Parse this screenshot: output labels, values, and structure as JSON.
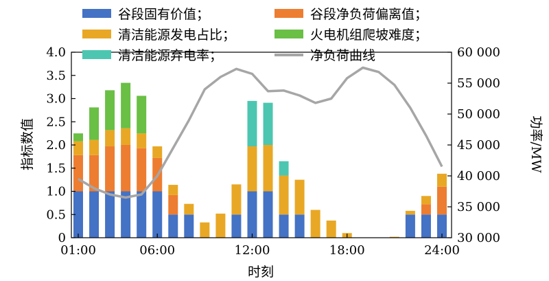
{
  "chart_data": {
    "type": "bar",
    "stacked": true,
    "xlabel": "时刻",
    "ylabel": "指标数值",
    "y2label": "功率/MW",
    "ylim": [
      0,
      4.0
    ],
    "y2lim": [
      30000,
      60000
    ],
    "yticks": [
      "0",
      "0.5",
      "1.0",
      "1.5",
      "2.0",
      "2.5",
      "3.0",
      "3.5",
      "4.0"
    ],
    "y2ticks": [
      "30 000",
      "35 000",
      "40 000",
      "45 000",
      "50 000",
      "55 000",
      "60 000"
    ],
    "xticks": [
      "01:00",
      "06:00",
      "12:00",
      "18:00",
      "24:00"
    ],
    "hours": [
      1,
      2,
      3,
      4,
      5,
      6,
      7,
      8,
      9,
      10,
      11,
      12,
      13,
      14,
      15,
      16,
      17,
      18,
      19,
      20,
      21,
      22,
      23,
      24
    ],
    "series": [
      {
        "name": "谷段固有价值；",
        "color": "#4472c4",
        "values": [
          1.0,
          1.0,
          1.0,
          1.0,
          1.0,
          1.0,
          0.5,
          0.5,
          0,
          0,
          0.5,
          1.0,
          1.0,
          0.5,
          0.5,
          0,
          0,
          0,
          0,
          0,
          0,
          0.5,
          0.5,
          0.5
        ]
      },
      {
        "name": "谷段净负荷偏离值；",
        "color": "#ed7d31",
        "values": [
          0.78,
          0.78,
          0.97,
          1.0,
          0.93,
          0.72,
          0.42,
          0,
          0,
          0,
          0,
          0,
          0,
          0,
          0,
          0,
          0,
          0,
          0,
          0,
          0,
          0,
          0.22,
          0.6
        ]
      },
      {
        "name": "清洁能源发电占比；",
        "color": "#e8a825",
        "values": [
          0.3,
          0.33,
          0.35,
          0.36,
          0.32,
          0.25,
          0.22,
          0.23,
          0.33,
          0.52,
          0.65,
          0.97,
          1.0,
          0.84,
          0.75,
          0.6,
          0.37,
          0.1,
          0,
          0,
          0.02,
          0.08,
          0.18,
          0.28
        ]
      },
      {
        "name": "火电机组爬坡难度；",
        "color": "#6abf45",
        "values": [
          0.17,
          0.7,
          0.86,
          0.98,
          0.81,
          0,
          0,
          0,
          0,
          0,
          0,
          0,
          0,
          0,
          0,
          0,
          0,
          0,
          0,
          0,
          0,
          0,
          0,
          0
        ]
      },
      {
        "name": "清洁能源弃电率；",
        "color": "#4cc6b0",
        "values": [
          0,
          0,
          0,
          0,
          0,
          0,
          0,
          0,
          0,
          0,
          0,
          0.98,
          0.91,
          0.31,
          0,
          0,
          0,
          0,
          0,
          0,
          0,
          0,
          0,
          0
        ]
      }
    ],
    "line": {
      "name": "净负荷曲线",
      "color": "#a6a6a6",
      "axis": "right",
      "values": [
        39500,
        38000,
        37000,
        36500,
        37000,
        40000,
        44500,
        49000,
        54000,
        56000,
        57300,
        56500,
        53700,
        53800,
        53000,
        51800,
        52500,
        55800,
        57500,
        56800,
        54700,
        51000,
        46500,
        41500
      ]
    },
    "grid": false,
    "legend_position": "top"
  }
}
